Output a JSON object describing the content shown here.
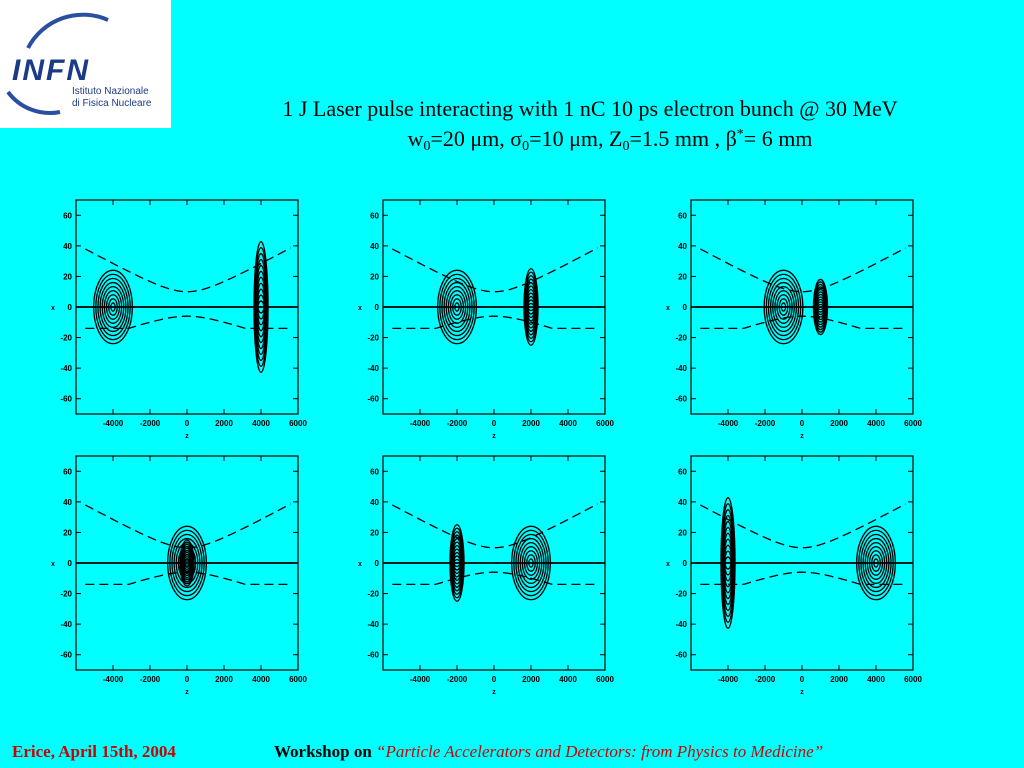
{
  "logo": {
    "wordmark": "INFN",
    "line1": "Istituto Nazionale",
    "line2": "di Fisica Nucleare",
    "arc_color": "#2a4fa0",
    "text_color": "#1c3b86"
  },
  "title": {
    "line1": "1 J Laser pulse interacting with 1 nC 10 ps electron bunch @ 30 MeV",
    "w0_sym": "w",
    "w0_sub": "0",
    "w0_val": "=20 μm, ",
    "s0_sym": "σ",
    "s0_sub": "0",
    "s0_val": "=10 μm,  ",
    "z0_sym": "Z",
    "z0_sub": "0",
    "z0_val": "=1.5 mm , ",
    "beta_sym": "β",
    "beta_sup": "*",
    "beta_val": "= 6 mm"
  },
  "axes": {
    "x_ticks": [
      "-4000",
      "-2000",
      "0",
      "2000",
      "4000",
      "6000"
    ],
    "y_ticks": [
      "60",
      "40",
      "20",
      "0",
      "-20",
      "-40",
      "-60"
    ],
    "x_label": "z",
    "y_label": "x"
  },
  "panels": [
    {
      "id": "panel-1",
      "electron_z": -4000,
      "laser_z": 4000
    },
    {
      "id": "panel-2",
      "electron_z": -2000,
      "laser_z": 2000
    },
    {
      "id": "panel-3",
      "electron_z": -1000,
      "laser_z": 1000
    },
    {
      "id": "panel-4",
      "electron_z": 0,
      "laser_z": 0
    },
    {
      "id": "panel-5",
      "electron_z": 2000,
      "laser_z": -2000
    },
    {
      "id": "panel-6",
      "electron_z": 4000,
      "laser_z": -4000
    }
  ],
  "footer": {
    "location_date": "Erice,  April 15th, 2004",
    "workshop_prefix": "Workshop on ",
    "workshop_title": "“Particle Accelerators and Detectors: from Physics to Medicine”"
  },
  "colors": {
    "background": "#00ffff",
    "accent": "#cc0000",
    "ink": "#000000"
  }
}
